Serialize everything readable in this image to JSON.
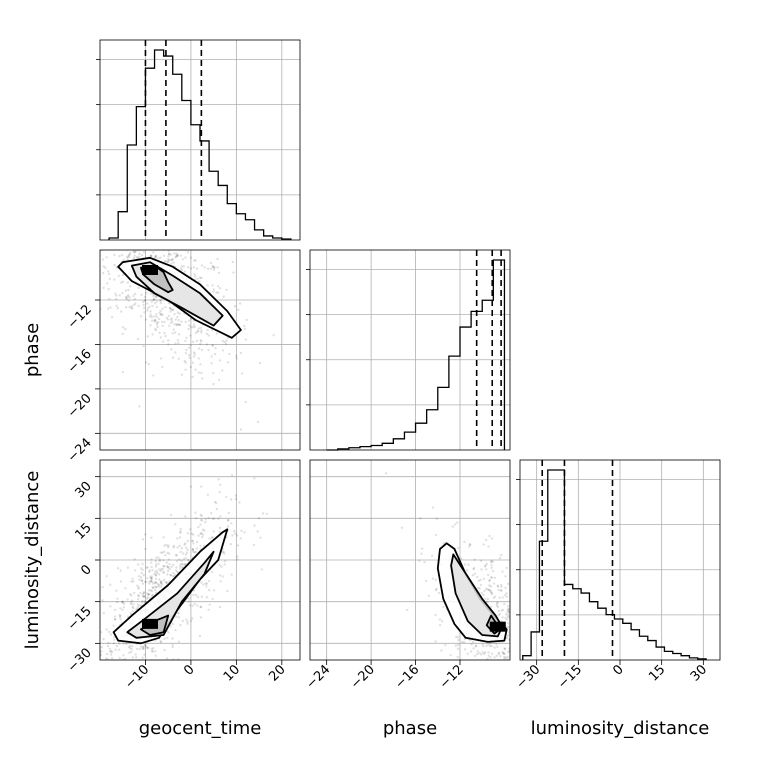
{
  "chart_data": {
    "type": "corner",
    "parameters": [
      "geocent_time",
      "phase",
      "luminosity_distance"
    ],
    "ranges": {
      "geocent_time": [
        -20,
        24
      ],
      "phase": [
        -25.5,
        -7.5
      ],
      "luminosity_distance": [
        -36,
        36
      ]
    },
    "ticks": {
      "geocent_time": [
        "−10",
        "0",
        "10",
        "20"
      ],
      "phase": [
        "−24",
        "−20",
        "−16",
        "−12"
      ],
      "luminosity_distance": [
        "−30",
        "−15",
        "0",
        "15",
        "30"
      ]
    },
    "tick_values": {
      "geocent_time": [
        -10,
        0,
        10,
        20
      ],
      "phase": [
        -24,
        -20,
        -16,
        -12
      ],
      "luminosity_distance": [
        -30,
        -15,
        0,
        15,
        30
      ]
    },
    "quantiles": {
      "geocent_time": [
        -10,
        -5.5,
        2.3
      ],
      "phase": [
        -10.5,
        -9.1,
        -8.3
      ],
      "luminosity_distance": [
        -28,
        -20,
        -2.7
      ]
    },
    "histograms": {
      "geocent_time": {
        "edges": [
          -18,
          -16,
          -14,
          -12,
          -10,
          -8,
          -6,
          -4,
          -2,
          0,
          2,
          4,
          6,
          8,
          10,
          12,
          14,
          16,
          18,
          20,
          22
        ],
        "values": [
          0.01,
          0.14,
          0.47,
          0.66,
          0.85,
          0.94,
          0.91,
          0.82,
          0.69,
          0.57,
          0.49,
          0.34,
          0.27,
          0.18,
          0.13,
          0.1,
          0.05,
          0.02,
          0.01,
          0.005
        ]
      },
      "phase": {
        "edges": [
          -24,
          -23,
          -22,
          -21,
          -20,
          -19,
          -18,
          -17,
          -16,
          -15,
          -14,
          -13,
          -12,
          -11,
          -10,
          -9,
          -8
        ],
        "values": [
          0.0,
          0.005,
          0.01,
          0.015,
          0.02,
          0.03,
          0.05,
          0.08,
          0.12,
          0.18,
          0.28,
          0.42,
          0.55,
          0.62,
          0.67,
          0.85
        ]
      },
      "luminosity_distance": {
        "edges": [
          -35,
          -32,
          -29,
          -26,
          -23,
          -20,
          -17,
          -14,
          -11,
          -8,
          -5,
          -2,
          1,
          4,
          7,
          10,
          13,
          16,
          19,
          22,
          25,
          28,
          31
        ],
        "values": [
          0.02,
          0.13,
          0.55,
          0.88,
          0.88,
          0.35,
          0.33,
          0.31,
          0.27,
          0.24,
          0.21,
          0.19,
          0.17,
          0.14,
          0.11,
          0.09,
          0.06,
          0.04,
          0.03,
          0.02,
          0.01,
          0.005
        ]
      }
    },
    "panels_2d": [
      {
        "x": "geocent_time",
        "y": "phase",
        "correlation": -0.6,
        "peak": [
          -9,
          -9.3
        ],
        "contours": [
          [
            [
              -15,
              -8.6
            ],
            [
              -9,
              -8.2
            ],
            [
              -4,
              -9.0
            ],
            [
              2,
              -10.6
            ],
            [
              8,
              -13.0
            ],
            [
              11,
              -14.7
            ],
            [
              9,
              -15.4
            ],
            [
              1,
              -13.8
            ],
            [
              -5,
              -12.0
            ],
            [
              -13,
              -10.3
            ],
            [
              -16,
              -9.0
            ]
          ],
          [
            [
              -13,
              -8.9
            ],
            [
              -9,
              -8.6
            ],
            [
              -4,
              -9.8
            ],
            [
              2,
              -11.4
            ],
            [
              7,
              -13.4
            ],
            [
              5,
              -14.3
            ],
            [
              -2,
              -12.7
            ],
            [
              -8,
              -11.4
            ],
            [
              -12,
              -9.9
            ]
          ],
          [
            [
              -11,
              -9.1
            ],
            [
              -8,
              -8.9
            ],
            [
              -6,
              -9.5
            ],
            [
              -5,
              -10.4
            ],
            [
              -4,
              -11.1
            ],
            [
              -5,
              -11.3
            ],
            [
              -8,
              -10.6
            ],
            [
              -10.5,
              -9.7
            ]
          ]
        ]
      },
      {
        "x": "geocent_time",
        "y": "luminosity_distance",
        "correlation": 0.75,
        "peak": [
          -9,
          -23
        ],
        "contours": [
          [
            [
              -17,
              -26
            ],
            [
              -13,
              -20
            ],
            [
              -5,
              -9
            ],
            [
              2,
              3
            ],
            [
              7,
              10
            ],
            [
              8,
              11
            ],
            [
              6,
              0
            ],
            [
              2,
              -7
            ],
            [
              -3,
              -18
            ],
            [
              -7,
              -28
            ],
            [
              -11,
              -30
            ],
            [
              -16,
              -29
            ]
          ],
          [
            [
              -14,
              -26
            ],
            [
              -10,
              -21
            ],
            [
              -3,
              -12
            ],
            [
              3,
              -1
            ],
            [
              5,
              3
            ],
            [
              3,
              -5
            ],
            [
              -2,
              -15
            ],
            [
              -6,
              -27
            ],
            [
              -12,
              -28
            ]
          ],
          [
            [
              -11,
              -25
            ],
            [
              -8,
              -22
            ],
            [
              -5,
              -20
            ],
            [
              -6,
              -26
            ],
            [
              -9,
              -27
            ]
          ]
        ]
      },
      {
        "x": "phase",
        "y": "luminosity_distance",
        "correlation": -0.6,
        "peak": [
          -8.6,
          -24
        ],
        "contours": [
          [
            [
              -13.2,
              6
            ],
            [
              -12.5,
              4
            ],
            [
              -11.5,
              -5
            ],
            [
              -10.2,
              -14
            ],
            [
              -8.8,
              -21
            ],
            [
              -7.8,
              -25
            ],
            [
              -8.0,
              -29
            ],
            [
              -9.5,
              -29.5
            ],
            [
              -11.5,
              -28
            ],
            [
              -12.5,
              -23
            ],
            [
              -13.5,
              -14
            ],
            [
              -14,
              -3
            ],
            [
              -13.8,
              4
            ]
          ],
          [
            [
              -12.6,
              2
            ],
            [
              -11.3,
              -6
            ],
            [
              -10,
              -14
            ],
            [
              -8.8,
              -20
            ],
            [
              -8.2,
              -24
            ],
            [
              -8.6,
              -27.5
            ],
            [
              -10,
              -27
            ],
            [
              -11.3,
              -22
            ],
            [
              -12.4,
              -12
            ],
            [
              -12.8,
              -2
            ]
          ],
          [
            [
              -9.2,
              -20
            ],
            [
              -8.7,
              -23
            ],
            [
              -8.4,
              -25
            ],
            [
              -8.9,
              -26.5
            ],
            [
              -9.6,
              -23.5
            ]
          ]
        ]
      }
    ]
  }
}
